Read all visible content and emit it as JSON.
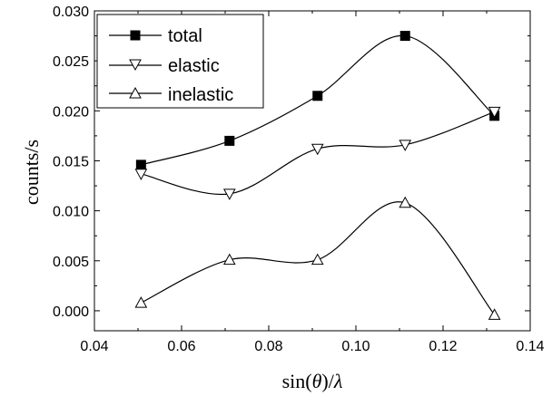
{
  "chart_data": {
    "type": "line",
    "xlabel_parts": [
      "sin(",
      "θ",
      ")/",
      "λ"
    ],
    "ylabel": "counts/s",
    "xlim": [
      0.04,
      0.14
    ],
    "ylim": [
      -0.002,
      0.03
    ],
    "xticks": [
      0.04,
      0.06,
      0.08,
      0.1,
      0.12,
      0.14
    ],
    "xtick_labels": [
      "0.04",
      "0.06",
      "0.08",
      "0.10",
      "0.12",
      "0.14"
    ],
    "yticks": [
      0.0,
      0.005,
      0.01,
      0.015,
      0.02,
      0.025,
      0.03
    ],
    "ytick_labels": [
      "0.000",
      "0.005",
      "0.010",
      "0.015",
      "0.020",
      "0.025",
      "0.030"
    ],
    "grid": false,
    "legend_position": "top-left",
    "series": [
      {
        "name": "total",
        "marker": "square",
        "x": [
          0.0507,
          0.071,
          0.0912,
          0.1113,
          0.1318
        ],
        "y": [
          0.0146,
          0.017,
          0.0215,
          0.0275,
          0.0195
        ]
      },
      {
        "name": "elastic",
        "marker": "triangle-down",
        "x": [
          0.0507,
          0.071,
          0.0912,
          0.1113,
          0.1318
        ],
        "y": [
          0.0137,
          0.0117,
          0.0162,
          0.0166,
          0.0199
        ]
      },
      {
        "name": "inelastic",
        "marker": "triangle-up",
        "x": [
          0.0507,
          0.071,
          0.0912,
          0.1113,
          0.1318
        ],
        "y": [
          0.0008,
          0.0051,
          0.0051,
          0.0108,
          -0.0004
        ]
      }
    ]
  }
}
